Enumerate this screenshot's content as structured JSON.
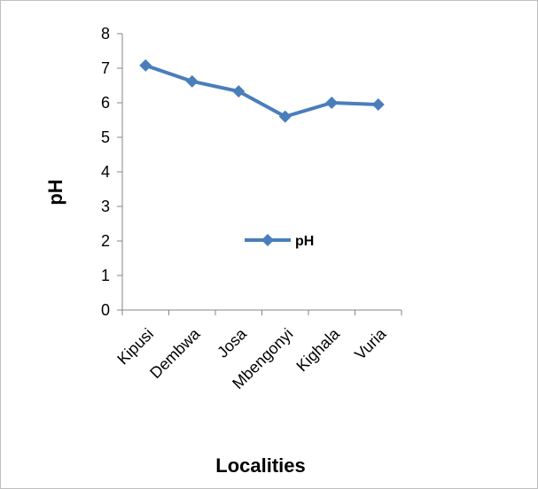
{
  "chart_data": {
    "type": "line",
    "title": "",
    "xlabel": "Localities",
    "ylabel": "pH",
    "categories": [
      "Kipusi",
      "Dembwa",
      "Josa",
      "Mbengonyi",
      "Kighala",
      "Vuria"
    ],
    "series": [
      {
        "name": "pH",
        "values": [
          7.08,
          6.62,
          6.33,
          5.6,
          6.0,
          5.95
        ],
        "color": "#4a7ebb",
        "marker": "diamond"
      }
    ],
    "yticks": [
      "0",
      "1",
      "2",
      "3",
      "4",
      "5",
      "6",
      "7",
      "8"
    ],
    "ylim": [
      0,
      8
    ],
    "grid": false,
    "legend": {
      "position": "center-right",
      "entries": [
        "pH"
      ]
    }
  }
}
